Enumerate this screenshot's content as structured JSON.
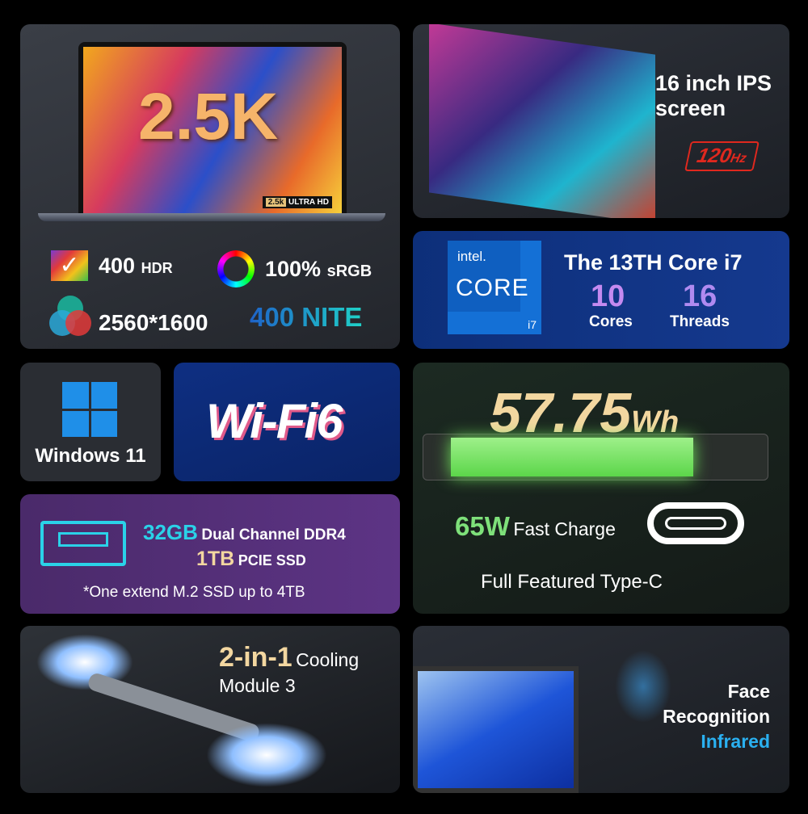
{
  "display": {
    "big": "2.5K",
    "badge_a": "2.5k",
    "badge_b": "ULTRA HD",
    "hdr_num": "400",
    "hdr_label": "HDR",
    "srgb_num": "100%",
    "srgb_label": "sRGB",
    "resolution": "2560*1600",
    "nite": "400 NITE"
  },
  "screen": {
    "title_line1": "16 inch IPS",
    "title_line2": "screen",
    "refresh_num": "120",
    "refresh_unit": "Hz"
  },
  "cpu": {
    "logo_brand": "intel.",
    "logo_core": "CORE",
    "logo_tier": "i7",
    "title": "The 13TH Core i7",
    "cores_num": "10",
    "cores_label": "Cores",
    "threads_num": "16",
    "threads_label": "Threads"
  },
  "os": {
    "label": "Windows 11"
  },
  "wifi": {
    "logo": "Wi-Fi6"
  },
  "battery": {
    "capacity_num": "57.75",
    "capacity_unit": "Wh",
    "charge_num": "65W",
    "charge_label": "Fast Charge",
    "port_label": "Full Featured Type-C"
  },
  "memory": {
    "ram_num": "32GB",
    "ram_label": "Dual Channel DDR4",
    "ssd_num": "1TB",
    "ssd_label": "PCIE SSD",
    "note": "*One extend M.2 SSD up to 4TB"
  },
  "cooling": {
    "num": "2-in-1",
    "label": "Cooling",
    "line2": "Module 3"
  },
  "face": {
    "line1": "Face",
    "line2": "Recognition",
    "line3": "Infrared"
  },
  "colors": {
    "accent_blue": "#1e63c8",
    "nite_teal": "#1fd1c8",
    "refresh_red": "#e0281e",
    "charge_green": "#7ee07a",
    "gold": "#f3d7a0"
  }
}
